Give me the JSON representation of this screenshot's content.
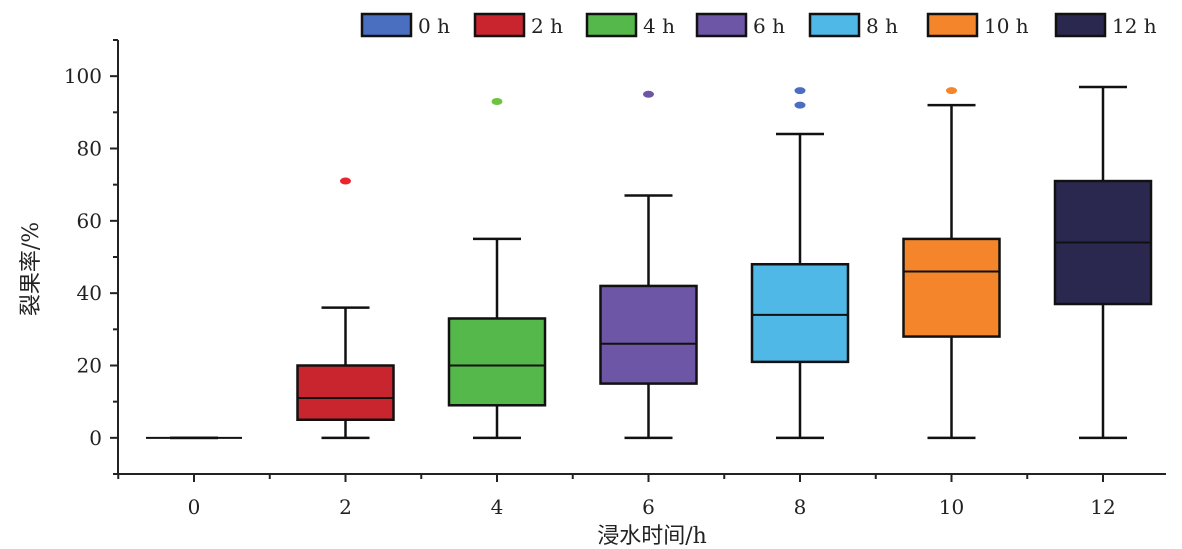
{
  "chart_data": {
    "type": "box",
    "xlabel": "浸水时间/h",
    "ylabel": "裂果率/%",
    "categories": [
      "0",
      "2",
      "4",
      "6",
      "8",
      "10",
      "12"
    ],
    "yticks": [
      "0",
      "20",
      "40",
      "60",
      "80",
      "100"
    ],
    "ylim": [
      -10,
      110
    ],
    "grid": false,
    "legend_position": "top",
    "series": [
      {
        "name": "0 h",
        "color": "#4a6fc1",
        "whisker_low": 0,
        "q1": 0,
        "median": 0,
        "q3": 0,
        "whisker_high": 0,
        "outliers": []
      },
      {
        "name": "2 h",
        "color": "#c9252f",
        "whisker_low": 0,
        "q1": 5,
        "median": 11,
        "q3": 20,
        "whisker_high": 36,
        "outliers": [
          71
        ]
      },
      {
        "name": "4 h",
        "color": "#55b84a",
        "whisker_low": 0,
        "q1": 9,
        "median": 20,
        "q3": 33,
        "whisker_high": 55,
        "outliers": [
          93
        ]
      },
      {
        "name": "6 h",
        "color": "#6e56a6",
        "whisker_low": 0,
        "q1": 15,
        "median": 26,
        "q3": 42,
        "whisker_high": 67,
        "outliers": [
          95
        ]
      },
      {
        "name": "8 h",
        "color": "#4fb8e6",
        "whisker_low": 0,
        "q1": 21,
        "median": 34,
        "q3": 48,
        "whisker_high": 84,
        "outliers": [
          92,
          96
        ]
      },
      {
        "name": "10 h",
        "color": "#f5852b",
        "whisker_low": 0,
        "q1": 28,
        "median": 46,
        "q3": 55,
        "whisker_high": 92,
        "outliers": [
          96
        ]
      },
      {
        "name": "12 h",
        "color": "#2b2850",
        "whisker_low": 0,
        "q1": 37,
        "median": 54,
        "q3": 71,
        "whisker_high": 97,
        "outliers": []
      }
    ],
    "outlier_colors": {
      "2 h": "#e8252f",
      "4 h": "#6cc440",
      "6 h": "#6e56a6",
      "8 h": "#4a6fc1",
      "10 h": "#f5852b"
    }
  }
}
